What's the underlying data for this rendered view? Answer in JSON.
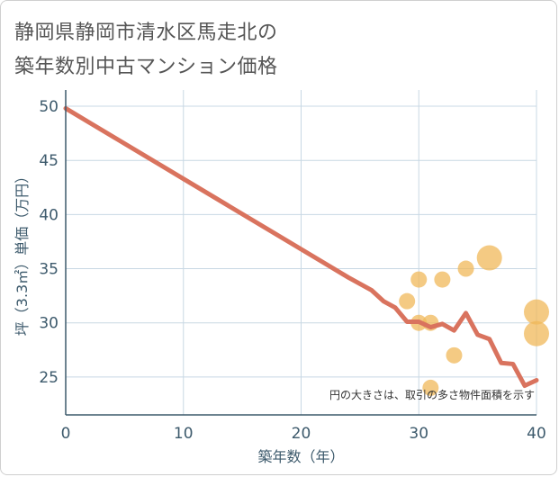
{
  "title": {
    "line1": "静岡県静岡市清水区馬走北の",
    "line2": "築年数別中古マンション価格"
  },
  "chart_data": {
    "type": "line+scatter",
    "xlabel": "築年数（年）",
    "ylabel": "坪（3.3㎡）単価（万円）",
    "xlim": [
      0,
      40
    ],
    "ylim": [
      21.5,
      51.5
    ],
    "x_ticks": [
      0,
      10,
      20,
      30,
      40
    ],
    "y_ticks": [
      25,
      30,
      35,
      40,
      45,
      50
    ],
    "grid": true,
    "note": "円の大きさは、取引の多さ物件面積を示す",
    "colors": {
      "line": "#d9735e",
      "bubble": "#f0b85a",
      "grid": "#c8d8e4",
      "axis": "#3d5a6c"
    },
    "line_series": {
      "name": "trend",
      "x": [
        0,
        2,
        4,
        6,
        8,
        10,
        12,
        14,
        16,
        18,
        20,
        22,
        24,
        26,
        27,
        28,
        29,
        30,
        31,
        32,
        33,
        34,
        35,
        36,
        37,
        38,
        39,
        40
      ],
      "y": [
        49.8,
        48.5,
        47.2,
        45.9,
        44.6,
        43.3,
        42.0,
        40.7,
        39.4,
        38.1,
        36.8,
        35.5,
        34.2,
        33.0,
        32.0,
        31.4,
        30.1,
        30.1,
        29.6,
        29.9,
        29.3,
        30.9,
        28.9,
        28.5,
        26.3,
        26.2,
        24.2,
        24.7
      ]
    },
    "bubbles": [
      {
        "x": 29,
        "y": 32,
        "size": 1
      },
      {
        "x": 30,
        "y": 34,
        "size": 1
      },
      {
        "x": 30,
        "y": 30,
        "size": 1
      },
      {
        "x": 31,
        "y": 30,
        "size": 1
      },
      {
        "x": 31,
        "y": 24,
        "size": 1
      },
      {
        "x": 32,
        "y": 34,
        "size": 1
      },
      {
        "x": 33,
        "y": 27,
        "size": 1
      },
      {
        "x": 34,
        "y": 35,
        "size": 1
      },
      {
        "x": 36,
        "y": 36,
        "size": 2
      },
      {
        "x": 40,
        "y": 31,
        "size": 2
      },
      {
        "x": 40,
        "y": 29,
        "size": 2
      }
    ]
  }
}
